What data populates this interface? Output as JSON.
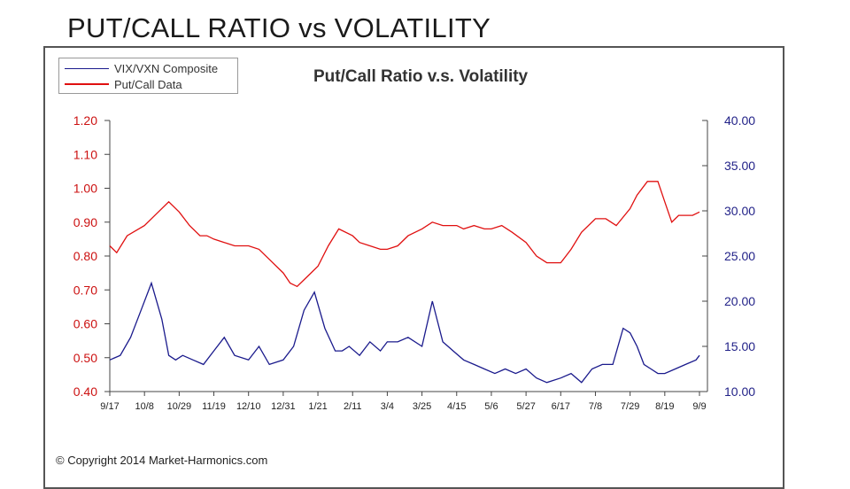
{
  "slide": {
    "title": "PUT/CALL RATIO vs VOLATILITY"
  },
  "footer": {
    "copyright": "© Copyright 2014 Market-Harmonics.com"
  },
  "colors": {
    "putcall": "#e01010",
    "vix": "#1a1a8c",
    "left_axis": "#cc1111",
    "right_axis": "#222288"
  },
  "chart_data": {
    "type": "line",
    "title": "Put/Call Ratio v.s. Volatility",
    "legend_position": "top-left",
    "legend": [
      "VIX/VXN Composite",
      "Put/Call Data"
    ],
    "x_tick_labels": [
      "9/17",
      "10/8",
      "10/29",
      "11/19",
      "12/10",
      "12/31",
      "1/21",
      "2/11",
      "3/4",
      "3/25",
      "4/15",
      "5/6",
      "5/27",
      "6/17",
      "7/8",
      "7/29",
      "8/19",
      "9/9"
    ],
    "left_axis": {
      "ticks": [
        "1.20",
        "1.10",
        "1.00",
        "0.90",
        "0.80",
        "0.70",
        "0.60",
        "0.50",
        "0.40"
      ],
      "ylim": [
        0.4,
        1.2
      ]
    },
    "right_axis": {
      "ticks": [
        "40.00",
        "35.00",
        "30.00",
        "25.00",
        "20.00",
        "15.00",
        "10.00"
      ],
      "ylim": [
        10.0,
        40.0
      ]
    },
    "series": [
      {
        "name": "Put/Call Data",
        "axis": "left",
        "x_index": [
          0,
          0.2,
          0.5,
          1,
          1.4,
          1.7,
          2,
          2.3,
          2.6,
          2.8,
          3,
          3.3,
          3.6,
          4,
          4.3,
          4.6,
          5,
          5.2,
          5.4,
          5.7,
          6,
          6.3,
          6.6,
          7,
          7.2,
          7.5,
          7.8,
          8,
          8.3,
          8.6,
          9,
          9.3,
          9.6,
          10,
          10.2,
          10.5,
          10.8,
          11,
          11.3,
          11.6,
          12,
          12.3,
          12.6,
          13,
          13.3,
          13.6,
          14,
          14.3,
          14.6,
          15,
          15.2,
          15.5,
          15.8,
          16,
          16.2,
          16.4,
          16.6,
          16.8,
          17
        ],
        "values": [
          0.83,
          0.81,
          0.86,
          0.89,
          0.93,
          0.96,
          0.93,
          0.89,
          0.86,
          0.86,
          0.85,
          0.84,
          0.83,
          0.83,
          0.82,
          0.79,
          0.75,
          0.72,
          0.71,
          0.74,
          0.77,
          0.83,
          0.88,
          0.86,
          0.84,
          0.83,
          0.82,
          0.82,
          0.83,
          0.86,
          0.88,
          0.9,
          0.89,
          0.89,
          0.88,
          0.89,
          0.88,
          0.88,
          0.89,
          0.87,
          0.84,
          0.8,
          0.78,
          0.78,
          0.82,
          0.87,
          0.91,
          0.91,
          0.89,
          0.94,
          0.98,
          1.02,
          1.02,
          0.96,
          0.9,
          0.92,
          0.92,
          0.92,
          0.93
        ]
      },
      {
        "name": "VIX/VXN Composite",
        "axis": "right",
        "x_index": [
          0,
          0.3,
          0.6,
          0.9,
          1.2,
          1.5,
          1.7,
          1.9,
          2.1,
          2.4,
          2.7,
          3,
          3.3,
          3.6,
          4,
          4.3,
          4.6,
          5,
          5.3,
          5.6,
          5.9,
          6.2,
          6.5,
          6.7,
          6.9,
          7.2,
          7.5,
          7.8,
          8,
          8.3,
          8.6,
          9,
          9.3,
          9.6,
          9.9,
          10.2,
          10.5,
          10.8,
          11.1,
          11.4,
          11.7,
          12,
          12.3,
          12.6,
          13,
          13.3,
          13.6,
          13.9,
          14.2,
          14.5,
          14.8,
          15,
          15.2,
          15.4,
          15.6,
          15.8,
          16,
          16.3,
          16.6,
          16.9,
          17
        ],
        "values": [
          13.5,
          14.0,
          16.0,
          19.0,
          22.0,
          18.0,
          14.0,
          13.5,
          14.0,
          13.5,
          13.0,
          14.5,
          16.0,
          14.0,
          13.5,
          15.0,
          13.0,
          13.5,
          15.0,
          19.0,
          21.0,
          17.0,
          14.5,
          14.5,
          15.0,
          14.0,
          15.5,
          14.5,
          15.5,
          15.5,
          16.0,
          15.0,
          20.0,
          15.5,
          14.5,
          13.5,
          13.0,
          12.5,
          12.0,
          12.5,
          12.0,
          12.5,
          11.5,
          11.0,
          11.5,
          12.0,
          11.0,
          12.5,
          13.0,
          13.0,
          17.0,
          16.5,
          15.0,
          13.0,
          12.5,
          12.0,
          12.0,
          12.5,
          13.0,
          13.5,
          14.0
        ]
      }
    ]
  }
}
